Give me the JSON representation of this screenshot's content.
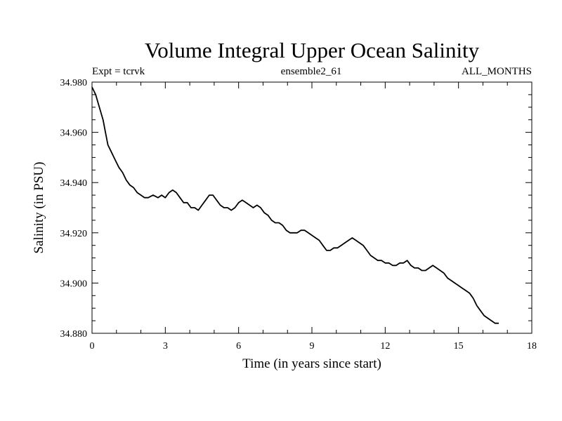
{
  "chart_data": {
    "type": "line",
    "title": "Volume Integral Upper Ocean Salinity",
    "subtitle_left": "Expt = tcrvk",
    "subtitle_center": "ensemble2_61",
    "subtitle_right": "ALL_MONTHS",
    "xlabel": "Time (in years since start)",
    "ylabel": "Salinity (in PSU)",
    "xlim": [
      0,
      18
    ],
    "ylim": [
      34.88,
      34.98
    ],
    "xticks": [
      0,
      3,
      6,
      9,
      12,
      15,
      18
    ],
    "xtick_labels": [
      "0",
      "3",
      "6",
      "9",
      "12",
      "15",
      "18"
    ],
    "yticks": [
      34.88,
      34.9,
      34.92,
      34.94,
      34.96,
      34.98
    ],
    "ytick_labels": [
      "34.880",
      "34.900",
      "34.920",
      "34.940",
      "34.960",
      "34.980"
    ],
    "grid": false,
    "series": [
      {
        "color": "#000000",
        "x": [
          0.0,
          0.15,
          0.3,
          0.45,
          0.55,
          0.65,
          0.8,
          0.95,
          1.1,
          1.25,
          1.4,
          1.55,
          1.7,
          1.85,
          2.0,
          2.15,
          2.3,
          2.5,
          2.7,
          2.85,
          3.0,
          3.15,
          3.3,
          3.45,
          3.6,
          3.75,
          3.9,
          4.05,
          4.2,
          4.35,
          4.5,
          4.65,
          4.8,
          4.95,
          5.1,
          5.25,
          5.4,
          5.55,
          5.7,
          5.85,
          6.0,
          6.15,
          6.3,
          6.45,
          6.6,
          6.75,
          6.9,
          7.05,
          7.2,
          7.35,
          7.5,
          7.65,
          7.8,
          7.95,
          8.1,
          8.25,
          8.4,
          8.55,
          8.7,
          8.85,
          9.0,
          9.15,
          9.3,
          9.45,
          9.6,
          9.75,
          9.9,
          10.05,
          10.2,
          10.35,
          10.5,
          10.65,
          10.8,
          10.95,
          11.1,
          11.25,
          11.4,
          11.55,
          11.7,
          11.85,
          12.0,
          12.15,
          12.3,
          12.45,
          12.6,
          12.75,
          12.9,
          13.05,
          13.2,
          13.35,
          13.5,
          13.65,
          13.8,
          13.95,
          14.1,
          14.25,
          14.4,
          14.55,
          14.7,
          14.85,
          15.0,
          15.15,
          15.3,
          15.45,
          15.6,
          15.75,
          15.9,
          16.05,
          16.2,
          16.35,
          16.5,
          16.65
        ],
        "y": [
          34.978,
          34.975,
          34.97,
          34.965,
          34.96,
          34.955,
          34.952,
          34.949,
          34.946,
          34.944,
          34.941,
          34.939,
          34.938,
          34.936,
          34.935,
          34.934,
          34.934,
          34.935,
          34.934,
          34.935,
          34.934,
          34.936,
          34.937,
          34.936,
          34.934,
          34.932,
          34.932,
          34.93,
          34.93,
          34.929,
          34.931,
          34.933,
          34.935,
          34.935,
          34.933,
          34.931,
          34.93,
          34.93,
          34.929,
          34.93,
          34.932,
          34.933,
          34.932,
          34.931,
          34.93,
          34.931,
          34.93,
          34.928,
          34.927,
          34.925,
          34.924,
          34.924,
          34.923,
          34.921,
          34.92,
          34.92,
          34.92,
          34.921,
          34.921,
          34.92,
          34.919,
          34.918,
          34.917,
          34.915,
          34.913,
          34.913,
          34.914,
          34.914,
          34.915,
          34.916,
          34.917,
          34.918,
          34.917,
          34.916,
          34.915,
          34.913,
          34.911,
          34.91,
          34.909,
          34.909,
          34.908,
          34.908,
          34.907,
          34.907,
          34.908,
          34.908,
          34.909,
          34.907,
          34.906,
          34.906,
          34.905,
          34.905,
          34.906,
          34.907,
          34.906,
          34.905,
          34.904,
          34.902,
          34.901,
          34.9,
          34.899,
          34.898,
          34.897,
          34.896,
          34.894,
          34.891,
          34.889,
          34.887,
          34.886,
          34.885,
          34.884,
          34.884
        ]
      }
    ]
  }
}
